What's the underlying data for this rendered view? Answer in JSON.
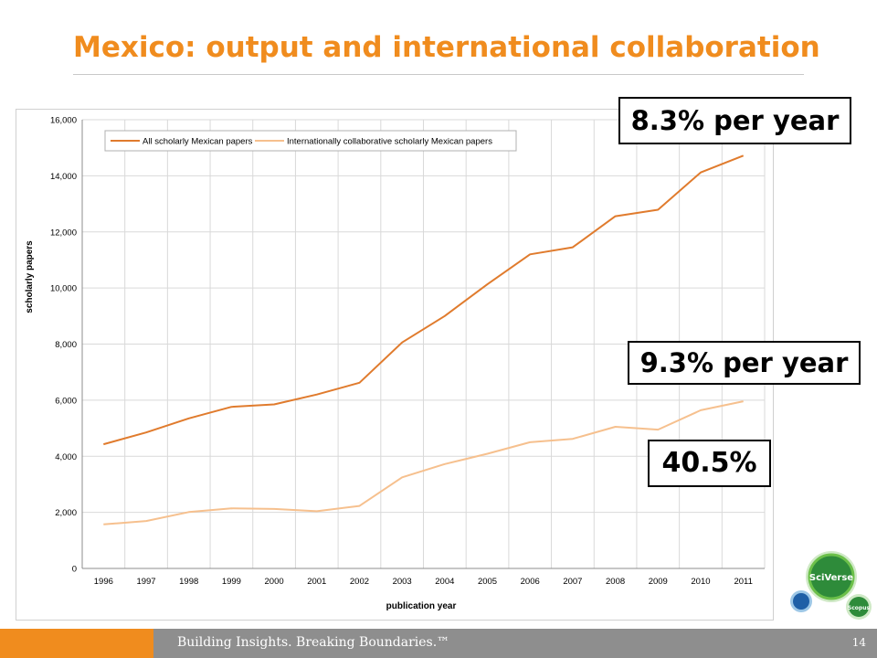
{
  "slide": {
    "title": "Mexico: output and international collaboration",
    "footer_tagline": "Building Insights. Breaking Boundaries.™",
    "page_number": "14"
  },
  "callouts": {
    "all_growth": "8.3% per year",
    "intl_growth": "9.3% per year",
    "intl_share": "40.5%"
  },
  "logos": {
    "sciverse": "SciVerse",
    "scopus": "Scopus"
  },
  "colors": {
    "title": "#f08c1e",
    "series_all": "#e07b2d",
    "series_intl": "#f6c08e",
    "footer_bar": "#8e8e8e",
    "footer_accent": "#f08c1e",
    "logo_green": "#2e8b3a"
  },
  "chart_data": {
    "type": "line",
    "title": "",
    "xlabel": "publication year",
    "ylabel": "scholarly papers",
    "x": [
      "1996",
      "1997",
      "1998",
      "1999",
      "2000",
      "2001",
      "2002",
      "2003",
      "2004",
      "2005",
      "2006",
      "2007",
      "2008",
      "2009",
      "2010",
      "2011"
    ],
    "ylim": [
      0,
      16000
    ],
    "yticks": [
      "0",
      "2,000",
      "4,000",
      "6,000",
      "8,000",
      "10,000",
      "12,000",
      "14,000",
      "16,000"
    ],
    "grid": true,
    "legend": "top-left",
    "series": [
      {
        "name": "All scholarly Mexican papers",
        "color": "#e07b2d",
        "values": [
          4430,
          4850,
          5350,
          5760,
          5850,
          6200,
          6620,
          8060,
          9000,
          10130,
          11200,
          11450,
          12560,
          12790,
          14120,
          14720
        ]
      },
      {
        "name": "Internationally collaborative scholarly Mexican papers",
        "color": "#f6c08e",
        "values": [
          1570,
          1690,
          2010,
          2140,
          2120,
          2040,
          2230,
          3250,
          3720,
          4090,
          4500,
          4620,
          5050,
          4950,
          5640,
          5960
        ]
      }
    ]
  }
}
